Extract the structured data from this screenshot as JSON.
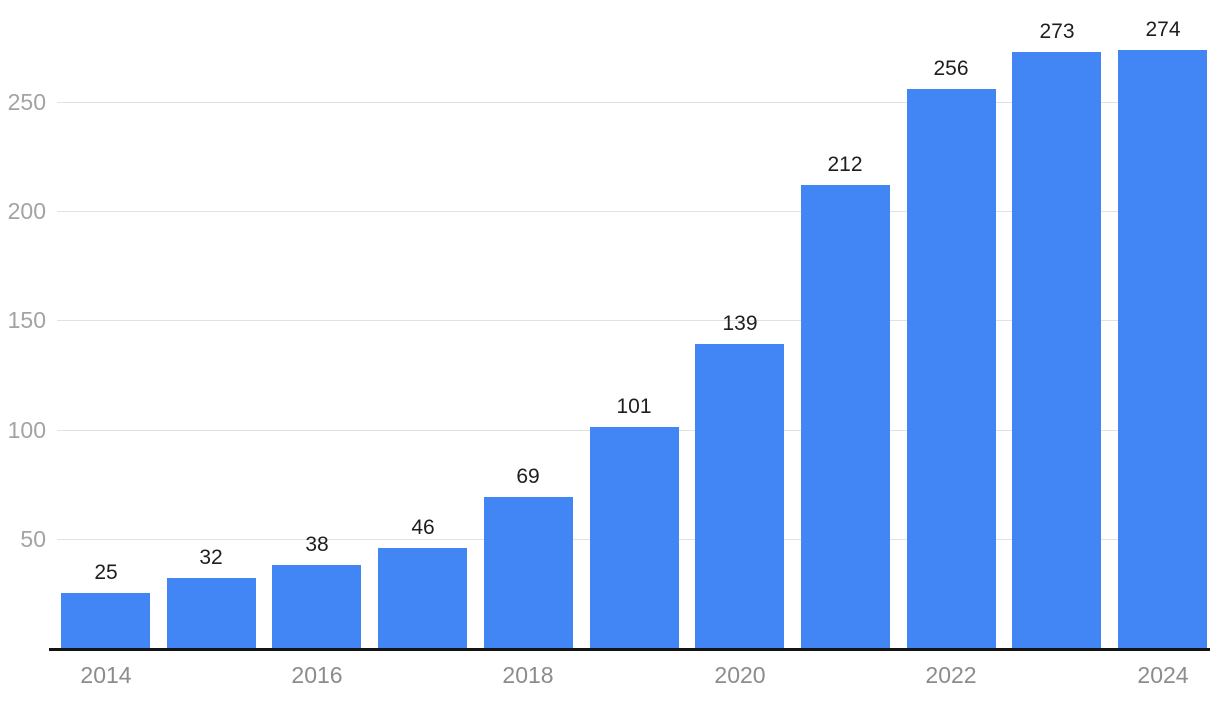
{
  "chart_data": {
    "type": "bar",
    "categories": [
      "2014",
      "2015",
      "2016",
      "2017",
      "2018",
      "2019",
      "2020",
      "2021",
      "2022",
      "2023",
      "2024"
    ],
    "values": [
      25,
      32,
      38,
      46,
      69,
      101,
      139,
      212,
      256,
      273,
      274
    ],
    "value_labels": [
      "25",
      "32",
      "38",
      "46",
      "69",
      "101",
      "139",
      "212",
      "256",
      "273",
      "274"
    ],
    "x_tick_labels": [
      "2014",
      "2016",
      "2018",
      "2020",
      "2022",
      "2024"
    ],
    "x_tick_indices": [
      0,
      2,
      4,
      6,
      8,
      10
    ],
    "y_ticks": [
      50,
      100,
      150,
      200,
      250
    ],
    "y_tick_labels": [
      "50",
      "100",
      "150",
      "200",
      "250"
    ],
    "ylim": [
      0,
      280
    ],
    "title": "",
    "xlabel": "",
    "ylabel": "",
    "grid": true,
    "legend": "none",
    "colors": {
      "bar": "#4285F4",
      "gridline": "#e2e2e2",
      "y_tick_label": "#a3a3a3",
      "x_tick_label": "#8c8c8c",
      "value_label": "#1e1e1e",
      "axis_line": "#141414",
      "background": "#ffffff"
    }
  }
}
